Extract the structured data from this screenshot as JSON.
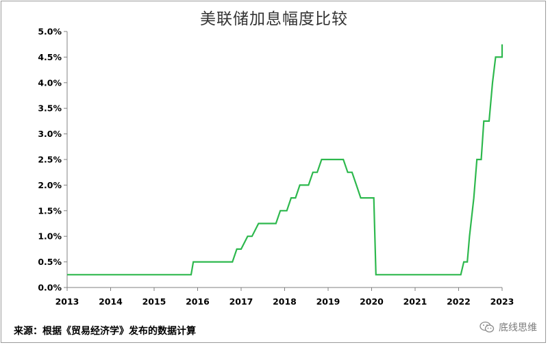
{
  "title": "美联储加息幅度比较",
  "source": "来源：根据《贸易经济学》发布的数据计算",
  "watermark": {
    "icon": "wechat-icon",
    "text": "底线思维"
  },
  "colors": {
    "line": "#2DB84D",
    "axis": "#808080",
    "text": "#000000"
  },
  "chart_data": {
    "type": "line",
    "title": "美联储加息幅度比较",
    "xlabel": "",
    "ylabel": "",
    "xlim": [
      2013,
      2023
    ],
    "ylim": [
      0,
      5.0
    ],
    "x_ticks": [
      "2013",
      "2014",
      "2015",
      "2016",
      "2017",
      "2018",
      "2019",
      "2020",
      "2021",
      "2022",
      "2023"
    ],
    "y_ticks": [
      "0.0%",
      "0.5%",
      "1.0%",
      "1.5%",
      "2.0%",
      "2.5%",
      "3.0%",
      "3.5%",
      "4.0%",
      "4.5%",
      "5.0%"
    ],
    "y_tick_values": [
      0,
      0.5,
      1.0,
      1.5,
      2.0,
      2.5,
      3.0,
      3.5,
      4.0,
      4.5,
      5.0
    ],
    "grid": false,
    "series": [
      {
        "color": "#2DB84D",
        "x": [
          2013.0,
          2015.85,
          2015.9,
          2016.8,
          2016.9,
          2017.0,
          2017.15,
          2017.25,
          2017.4,
          2017.8,
          2017.9,
          2018.05,
          2018.15,
          2018.25,
          2018.35,
          2018.55,
          2018.65,
          2018.75,
          2018.85,
          2019.35,
          2019.45,
          2019.55,
          2019.65,
          2019.75,
          2020.05,
          2020.1,
          2022.05,
          2022.12,
          2022.2,
          2022.25,
          2022.35,
          2022.42,
          2022.52,
          2022.58,
          2022.7,
          2022.78,
          2022.85,
          2022.95,
          2023.0,
          2023.0
        ],
        "y": [
          0.25,
          0.25,
          0.5,
          0.5,
          0.75,
          0.75,
          1.0,
          1.0,
          1.25,
          1.25,
          1.5,
          1.5,
          1.75,
          1.75,
          2.0,
          2.0,
          2.25,
          2.25,
          2.5,
          2.5,
          2.25,
          2.25,
          2.0,
          1.75,
          1.75,
          0.25,
          0.25,
          0.5,
          0.5,
          1.0,
          1.75,
          2.5,
          2.5,
          3.25,
          3.25,
          4.0,
          4.5,
          4.5,
          4.5,
          4.75
        ]
      }
    ]
  }
}
